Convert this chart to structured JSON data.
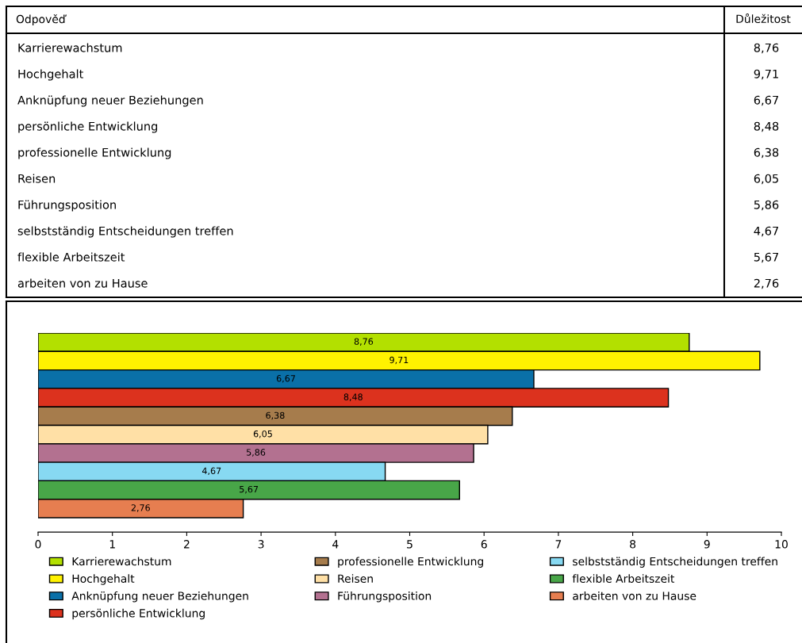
{
  "chart_data": [
    {
      "type": "other",
      "categories": [
        "Karrierewachstum",
        "Hochgehalt",
        "Anknüpfung neuer Beziehungen",
        "persönliche Entwicklung",
        "professionelle Entwicklung",
        "Reisen",
        "Führungsposition",
        "selbstständig Entscheidungen treffen",
        "flexible Arbeitszeit",
        "arbeiten von zu Hause"
      ],
      "value_labels": [
        "8,76",
        "9,71",
        "6,67",
        "8,48",
        "6,38",
        "6,05",
        "5,86",
        "4,67",
        "5,67",
        "2,76"
      ],
      "annotations": [
        "Odpověď",
        "Důležitost"
      ]
    },
    {
      "type": "bar",
      "orientation": "horizontal",
      "stacked": true,
      "categories": [
        null,
        null,
        null,
        null,
        null,
        null,
        null,
        null,
        null,
        null
      ],
      "series": [
        {
          "name": "Karrierewachstum",
          "color": "#b3e000",
          "values": [
            8.76,
            null,
            null,
            null,
            null,
            null,
            null,
            null,
            null,
            null
          ],
          "value_labels": [
            "8,76",
            null,
            null,
            null,
            null,
            null,
            null,
            null,
            null,
            null
          ]
        },
        {
          "name": "Hochgehalt",
          "color": "#fff200",
          "values": [
            null,
            9.71,
            null,
            null,
            null,
            null,
            null,
            null,
            null,
            null
          ],
          "value_labels": [
            null,
            "9,71",
            null,
            null,
            null,
            null,
            null,
            null,
            null,
            null
          ]
        },
        {
          "name": "Anknüpfung neuer Beziehungen",
          "color": "#0a70a8",
          "values": [
            null,
            null,
            6.67,
            null,
            null,
            null,
            null,
            null,
            null,
            null
          ],
          "value_labels": [
            null,
            null,
            "6,67",
            null,
            null,
            null,
            null,
            null,
            null,
            null
          ]
        },
        {
          "name": "persönliche Entwicklung",
          "color": "#dc321e",
          "values": [
            null,
            null,
            null,
            8.48,
            null,
            null,
            null,
            null,
            null,
            null
          ],
          "value_labels": [
            null,
            null,
            null,
            "8,48",
            null,
            null,
            null,
            null,
            null,
            null
          ]
        },
        {
          "name": "professionelle Entwicklung",
          "color": "#a67c4c",
          "values": [
            null,
            null,
            null,
            null,
            6.38,
            null,
            null,
            null,
            null,
            null
          ],
          "value_labels": [
            null,
            null,
            null,
            null,
            "6,38",
            null,
            null,
            null,
            null,
            null
          ]
        },
        {
          "name": "Reisen",
          "color": "#ffe0a6",
          "values": [
            null,
            null,
            null,
            null,
            null,
            6.05,
            null,
            null,
            null,
            null
          ],
          "value_labels": [
            null,
            null,
            null,
            null,
            null,
            "6,05",
            null,
            null,
            null,
            null
          ]
        },
        {
          "name": "Führungsposition",
          "color": "#b37190",
          "values": [
            null,
            null,
            null,
            null,
            null,
            null,
            5.86,
            null,
            null,
            null
          ],
          "value_labels": [
            null,
            null,
            null,
            null,
            null,
            null,
            "5,86",
            null,
            null,
            null
          ]
        },
        {
          "name": "selbstständig Entscheidungen treffen",
          "color": "#87d9f2",
          "values": [
            null,
            null,
            null,
            null,
            null,
            null,
            null,
            4.67,
            null,
            null
          ],
          "value_labels": [
            null,
            null,
            null,
            null,
            null,
            null,
            null,
            "4,67",
            null,
            null
          ]
        },
        {
          "name": "flexible Arbeitszeit",
          "color": "#48a648",
          "values": [
            null,
            null,
            null,
            null,
            null,
            null,
            null,
            null,
            5.67,
            null
          ],
          "value_labels": [
            null,
            null,
            null,
            null,
            null,
            null,
            null,
            null,
            "5,67",
            null
          ]
        },
        {
          "name": "arbeiten von zu Hause",
          "color": "#e67e50",
          "values": [
            null,
            null,
            null,
            null,
            null,
            null,
            null,
            null,
            null,
            2.76
          ],
          "value_labels": [
            null,
            null,
            null,
            null,
            null,
            null,
            null,
            null,
            null,
            "2,76"
          ]
        }
      ],
      "xlim": [
        0,
        10
      ],
      "xticks": [
        0,
        1,
        2,
        3,
        4,
        5,
        6,
        7,
        8,
        9,
        10
      ],
      "legend": "bottom"
    }
  ]
}
